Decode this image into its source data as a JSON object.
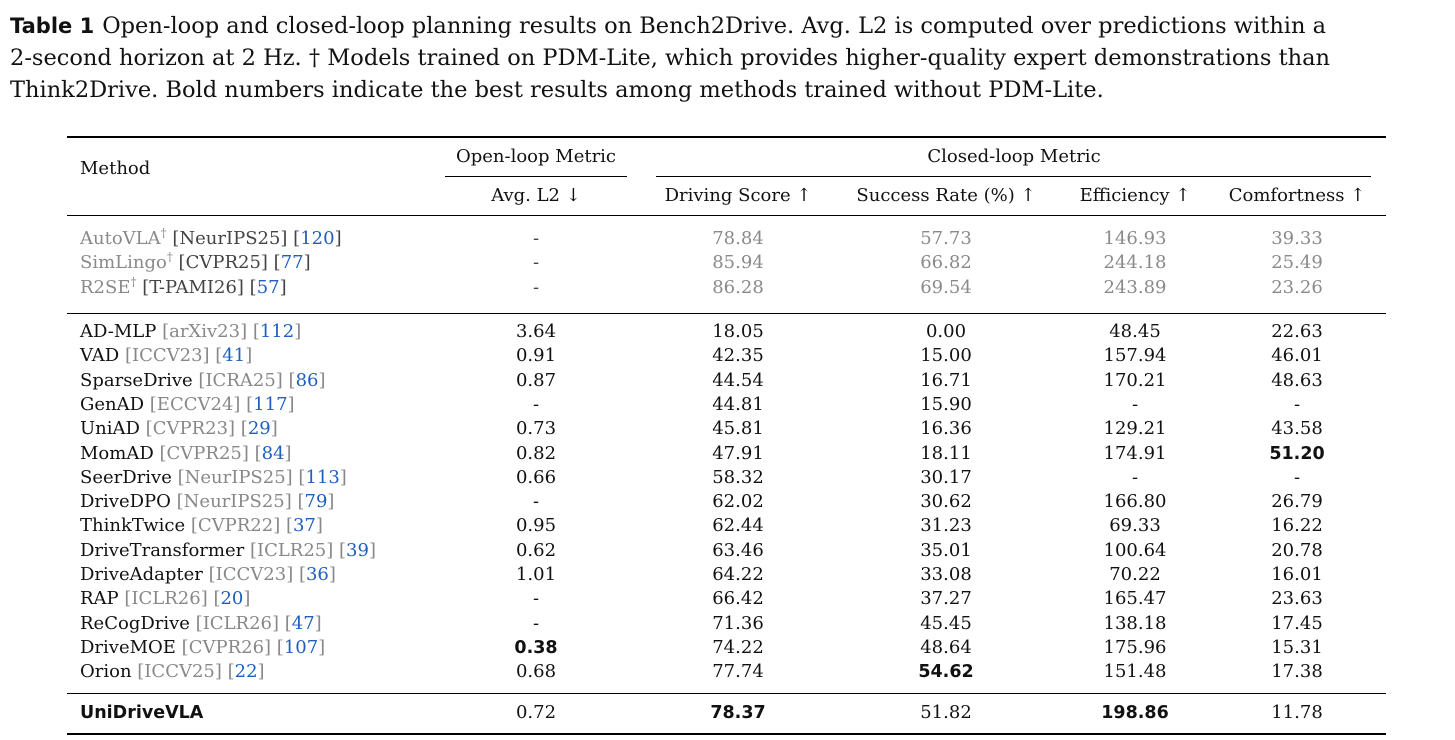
{
  "caption": {
    "label": "Table 1",
    "lines": [
      "Open-loop and closed-loop planning results on Bench2Drive. Avg. L2 is computed over predictions within a",
      "2-second horizon at 2 Hz. † Models trained on PDM-Lite, which provides higher-quality expert demonstrations than",
      "Think2Drive. Bold numbers indicate the best results among methods trained without PDM-Lite."
    ]
  },
  "header": {
    "method": "Method",
    "open_loop_group": "Open-loop Metric",
    "closed_loop_group": "Closed-loop Metric",
    "columns": [
      "Avg. L2 ↓",
      "Driving Score ↑",
      "Success Rate (%) ↑",
      "Efficiency ↑",
      "Comfortness ↑"
    ]
  },
  "groups": [
    {
      "style": "gray",
      "rows": [
        {
          "name": "AutoVLA",
          "dagger": "†",
          "venue": "[NeurIPS25]",
          "ref": "120",
          "values": [
            "-",
            "78.84",
            "57.73",
            "146.93",
            "39.33"
          ],
          "bold": []
        },
        {
          "name": "SimLingo",
          "dagger": "†",
          "venue": "[CVPR25]",
          "ref": "77",
          "values": [
            "-",
            "85.94",
            "66.82",
            "244.18",
            "25.49"
          ],
          "bold": []
        },
        {
          "name": "R2SE",
          "dagger": "†",
          "venue": "[T-PAMI26]",
          "ref": "57",
          "values": [
            "-",
            "86.28",
            "69.54",
            "243.89",
            "23.26"
          ],
          "bold": []
        }
      ]
    },
    {
      "style": "normal",
      "rows": [
        {
          "name": "AD-MLP",
          "venue": "[arXiv23]",
          "ref": "112",
          "values": [
            "3.64",
            "18.05",
            "0.00",
            "48.45",
            "22.63"
          ],
          "bold": []
        },
        {
          "name": "VAD",
          "venue": "[ICCV23]",
          "ref": "41",
          "values": [
            "0.91",
            "42.35",
            "15.00",
            "157.94",
            "46.01"
          ],
          "bold": []
        },
        {
          "name": "SparseDrive",
          "venue": "[ICRA25]",
          "ref": "86",
          "values": [
            "0.87",
            "44.54",
            "16.71",
            "170.21",
            "48.63"
          ],
          "bold": []
        },
        {
          "name": "GenAD",
          "venue": "[ECCV24]",
          "ref": "117",
          "values": [
            "-",
            "44.81",
            "15.90",
            "-",
            "-"
          ],
          "bold": []
        },
        {
          "name": "UniAD",
          "venue": "[CVPR23]",
          "ref": "29",
          "values": [
            "0.73",
            "45.81",
            "16.36",
            "129.21",
            "43.58"
          ],
          "bold": []
        },
        {
          "name": "MomAD",
          "venue": "[CVPR25]",
          "ref": "84",
          "values": [
            "0.82",
            "47.91",
            "18.11",
            "174.91",
            "51.20"
          ],
          "bold": [
            4
          ]
        },
        {
          "name": "SeerDrive",
          "venue": "[NeurIPS25]",
          "ref": "113",
          "values": [
            "0.66",
            "58.32",
            "30.17",
            "-",
            "-"
          ],
          "bold": []
        },
        {
          "name": "DriveDPO",
          "venue": "[NeurIPS25]",
          "ref": "79",
          "values": [
            "-",
            "62.02",
            "30.62",
            "166.80",
            "26.79"
          ],
          "bold": []
        },
        {
          "name": "ThinkTwice",
          "venue": "[CVPR22]",
          "ref": "37",
          "values": [
            "0.95",
            "62.44",
            "31.23",
            "69.33",
            "16.22"
          ],
          "bold": []
        },
        {
          "name": "DriveTransformer",
          "venue": "[ICLR25]",
          "ref": "39",
          "values": [
            "0.62",
            "63.46",
            "35.01",
            "100.64",
            "20.78"
          ],
          "bold": []
        },
        {
          "name": "DriveAdapter",
          "venue": "[ICCV23]",
          "ref": "36",
          "values": [
            "1.01",
            "64.22",
            "33.08",
            "70.22",
            "16.01"
          ],
          "bold": []
        },
        {
          "name": "RAP",
          "venue": "[ICLR26]",
          "ref": "20",
          "values": [
            "-",
            "66.42",
            "37.27",
            "165.47",
            "23.63"
          ],
          "bold": []
        },
        {
          "name": "ReCogDrive",
          "venue": "[ICLR26]",
          "ref": "47",
          "values": [
            "-",
            "71.36",
            "45.45",
            "138.18",
            "17.45"
          ],
          "bold": []
        },
        {
          "name": "DriveMOE",
          "venue": "[CVPR26]",
          "ref": "107",
          "values": [
            "0.38",
            "74.22",
            "48.64",
            "175.96",
            "15.31"
          ],
          "bold": [
            0
          ]
        },
        {
          "name": "Orion",
          "venue": "[ICCV25]",
          "ref": "22",
          "values": [
            "0.68",
            "77.74",
            "54.62",
            "151.48",
            "17.38"
          ],
          "bold": [
            2
          ]
        }
      ]
    },
    {
      "style": "ours",
      "rows": [
        {
          "name": "UniDriveVLA",
          "venue": "",
          "ref": "",
          "values": [
            "0.72",
            "78.37",
            "51.82",
            "198.86",
            "11.78"
          ],
          "bold": [
            1,
            3
          ]
        }
      ]
    }
  ]
}
